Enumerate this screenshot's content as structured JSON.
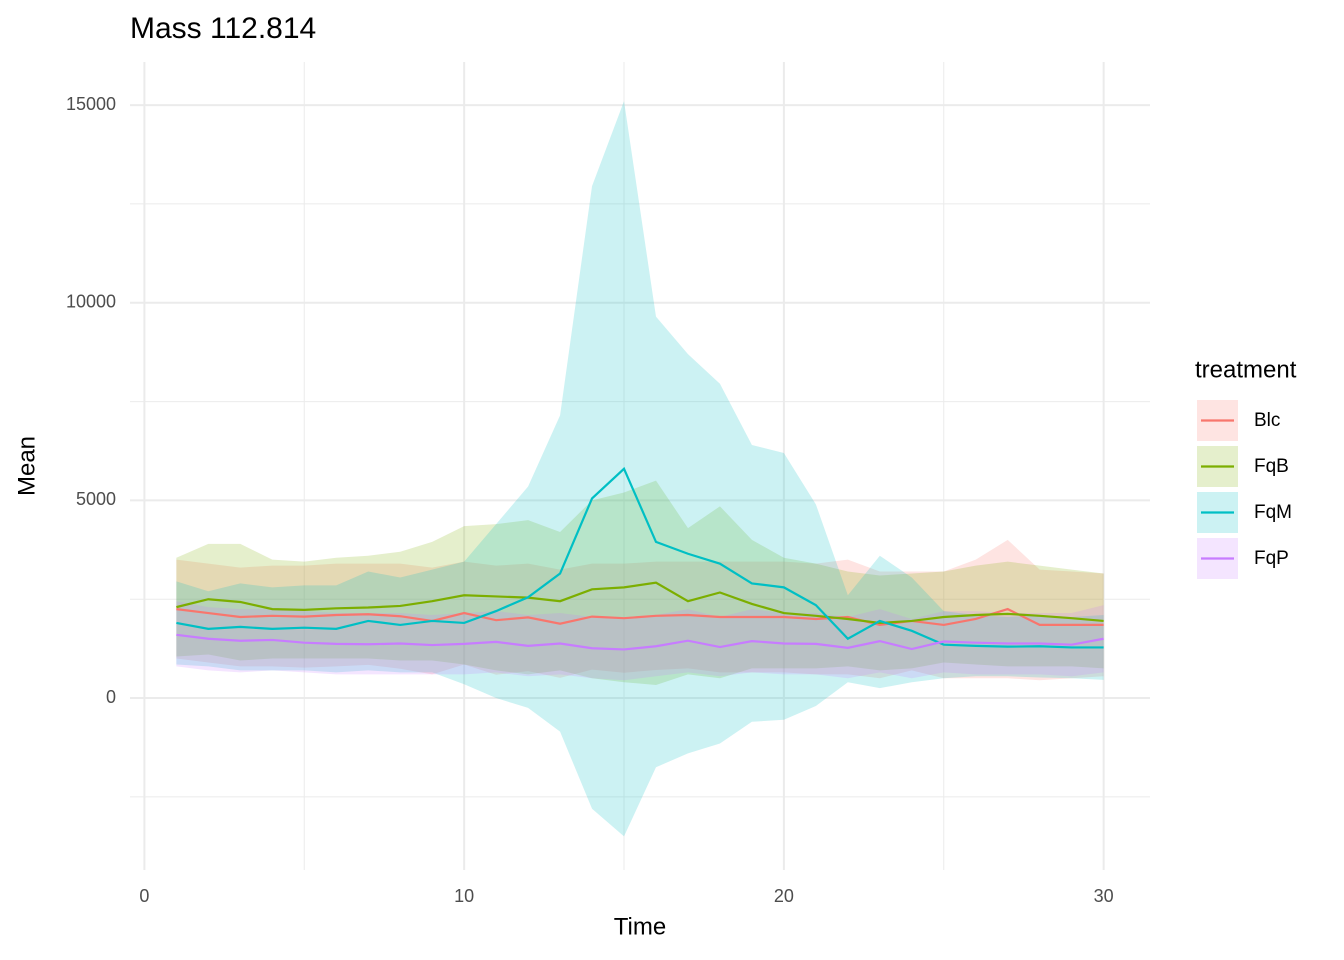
{
  "chart_data": {
    "type": "line",
    "title": "Mass 112.814",
    "x_label": "Time",
    "y_label": "Mean",
    "legend_title": "treatment",
    "legend_position": "right",
    "grid": true,
    "ribbon_opacity": 0.2,
    "x": [
      1,
      2,
      3,
      4,
      5,
      6,
      7,
      8,
      9,
      10,
      11,
      12,
      13,
      14,
      15,
      16,
      17,
      18,
      19,
      20,
      21,
      22,
      23,
      24,
      25,
      26,
      27,
      28,
      29,
      30
    ],
    "xlim": [
      -0.45,
      31.45
    ],
    "ylim": [
      -4350,
      16090
    ],
    "xticks": [
      0,
      10,
      20,
      30
    ],
    "yticks": [
      0,
      5000,
      10000,
      15000
    ],
    "minor_xticks": [
      5,
      15,
      25
    ],
    "minor_yticks": [
      -2500,
      2500,
      7500,
      12500
    ],
    "series": [
      {
        "name": "Blc",
        "color": "#F8766D",
        "values": [
          2250,
          2150,
          2050,
          2080,
          2060,
          2100,
          2120,
          2070,
          1950,
          2150,
          1970,
          2040,
          1880,
          2060,
          2020,
          2080,
          2100,
          2050,
          2050,
          2050,
          2000,
          2050,
          1850,
          1950,
          1850,
          2000,
          2250,
          1850,
          1850,
          1850
        ],
        "upper": [
          3500,
          3400,
          3300,
          3350,
          3350,
          3400,
          3400,
          3400,
          3300,
          3450,
          3350,
          3400,
          3250,
          3400,
          3400,
          3450,
          3450,
          3450,
          3450,
          3450,
          3400,
          3500,
          3200,
          3200,
          3200,
          3500,
          4000,
          3250,
          3200,
          3150
        ],
        "lower": [
          1000,
          900,
          800,
          800,
          770,
          800,
          840,
          740,
          600,
          850,
          590,
          680,
          510,
          720,
          640,
          710,
          750,
          650,
          650,
          650,
          600,
          600,
          500,
          700,
          500,
          500,
          500,
          450,
          500,
          550
        ]
      },
      {
        "name": "FqB",
        "color": "#7CAE00",
        "values": [
          2300,
          2500,
          2430,
          2250,
          2230,
          2270,
          2290,
          2330,
          2450,
          2600,
          2570,
          2540,
          2450,
          2750,
          2800,
          2920,
          2450,
          2670,
          2380,
          2150,
          2080,
          2000,
          1900,
          1950,
          2050,
          2100,
          2130,
          2080,
          2020,
          1950
        ],
        "upper": [
          3550,
          3900,
          3900,
          3500,
          3450,
          3550,
          3600,
          3700,
          3950,
          4350,
          4400,
          4500,
          4200,
          5000,
          5200,
          5500,
          4300,
          4850,
          4000,
          3550,
          3400,
          3200,
          3100,
          3150,
          3200,
          3350,
          3450,
          3350,
          3250,
          3150
        ],
        "lower": [
          1050,
          1100,
          950,
          1000,
          1000,
          1000,
          1000,
          950,
          950,
          850,
          700,
          600,
          700,
          500,
          400,
          330,
          600,
          500,
          750,
          750,
          750,
          800,
          700,
          750,
          900,
          850,
          800,
          800,
          800,
          750
        ]
      },
      {
        "name": "FqM",
        "color": "#00BFC4",
        "values": [
          1900,
          1750,
          1800,
          1750,
          1780,
          1750,
          1950,
          1850,
          1950,
          1900,
          2200,
          2550,
          3150,
          5050,
          5800,
          3950,
          3650,
          3400,
          2900,
          2800,
          2350,
          1500,
          1950,
          1700,
          1350,
          1320,
          1300,
          1310,
          1280,
          1280
        ],
        "upper": [
          2950,
          2700,
          2900,
          2800,
          2850,
          2850,
          3200,
          3050,
          3250,
          3450,
          4400,
          5350,
          7150,
          12950,
          15100,
          9650,
          8700,
          7950,
          6400,
          6200,
          4900,
          2600,
          3600,
          3050,
          2200,
          2100,
          2050,
          2100,
          2050,
          2100
        ],
        "lower": [
          850,
          800,
          700,
          700,
          700,
          650,
          700,
          650,
          650,
          350,
          0,
          -250,
          -850,
          -2800,
          -3500,
          -1750,
          -1400,
          -1150,
          -600,
          -550,
          -200,
          400,
          250,
          400,
          500,
          550,
          550,
          520,
          500,
          460
        ]
      },
      {
        "name": "FqP",
        "color": "#C77CFF",
        "values": [
          1600,
          1500,
          1450,
          1470,
          1400,
          1370,
          1360,
          1380,
          1340,
          1370,
          1420,
          1320,
          1380,
          1260,
          1230,
          1310,
          1450,
          1290,
          1440,
          1380,
          1370,
          1270,
          1440,
          1240,
          1430,
          1400,
          1380,
          1380,
          1350,
          1500
        ],
        "upper": [
          2450,
          2300,
          2250,
          2250,
          2200,
          2150,
          2150,
          2150,
          2100,
          2150,
          2200,
          2100,
          2150,
          2050,
          2000,
          2100,
          2250,
          2050,
          2250,
          2150,
          2150,
          2050,
          2250,
          2000,
          2200,
          2200,
          2150,
          2150,
          2150,
          2350
        ],
        "lower": [
          800,
          700,
          650,
          700,
          650,
          600,
          600,
          600,
          600,
          600,
          650,
          550,
          600,
          500,
          450,
          550,
          650,
          550,
          650,
          600,
          600,
          500,
          650,
          500,
          650,
          600,
          600,
          600,
          550,
          650
        ]
      }
    ]
  }
}
